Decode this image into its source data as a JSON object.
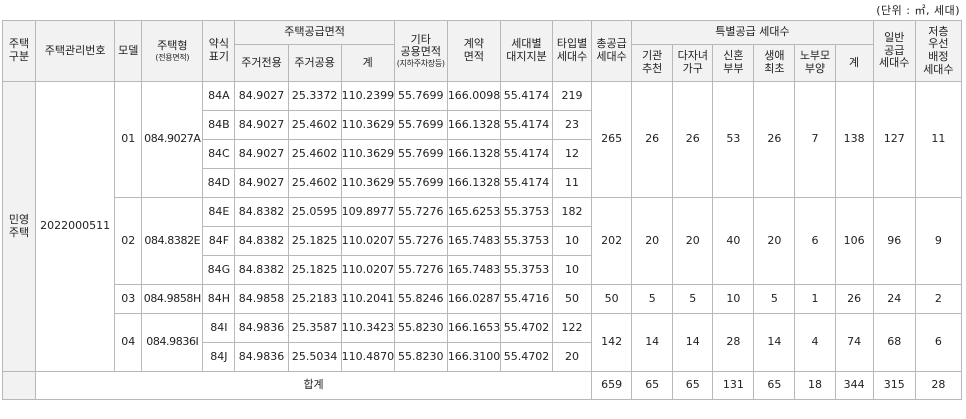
{
  "unit_note": "(단위 : ㎡, 세대)",
  "headers": {
    "housing_type": "주택\n구분",
    "mgmt_no": "주택관리번호",
    "model": "모델",
    "house_type": "주택형",
    "house_type_sub": "(전용면적)",
    "abbr": "약식\n표기",
    "supply_area": "주택공급면적",
    "excl": "주거전용",
    "common": "주거공용",
    "sum": "계",
    "other_common": "기타\n공용면적",
    "other_common_sub": "(지하주차장등)",
    "contract_area": "계약\n면적",
    "land_share": "세대별\n대지지분",
    "type_units": "타입별\n세대수",
    "total_supply": "총공급\n세대수",
    "special": "특별공급 세대수",
    "inst": "기관\n추천",
    "multi": "다자녀\n가구",
    "newlywed": "신혼\n부부",
    "first": "생애\n최초",
    "elderly": "노부모\n부양",
    "special_sum": "계",
    "general": "일반\n공급\n세대수",
    "low_storey": "저층\n우선\n배정\n세대수"
  },
  "housing_type": "민영\n주택",
  "mgmt_no": "2022000511",
  "models": [
    {
      "model": "01",
      "house_type": "084.9027A",
      "total_supply": "265",
      "inst": "26",
      "multi": "26",
      "newlywed": "53",
      "first": "26",
      "elderly": "7",
      "special_sum": "138",
      "general": "127",
      "low_storey": "11",
      "rows": [
        {
          "abbr": "84A",
          "excl": "84.9027",
          "common": "25.3372",
          "sum": "110.2399",
          "other": "55.7699",
          "contract": "166.0098",
          "land": "55.4174",
          "units": "219"
        },
        {
          "abbr": "84B",
          "excl": "84.9027",
          "common": "25.4602",
          "sum": "110.3629",
          "other": "55.7699",
          "contract": "166.1328",
          "land": "55.4174",
          "units": "23"
        },
        {
          "abbr": "84C",
          "excl": "84.9027",
          "common": "25.4602",
          "sum": "110.3629",
          "other": "55.7699",
          "contract": "166.1328",
          "land": "55.4174",
          "units": "12"
        },
        {
          "abbr": "84D",
          "excl": "84.9027",
          "common": "25.4602",
          "sum": "110.3629",
          "other": "55.7699",
          "contract": "166.1328",
          "land": "55.4174",
          "units": "11"
        }
      ]
    },
    {
      "model": "02",
      "house_type": "084.8382E",
      "total_supply": "202",
      "inst": "20",
      "multi": "20",
      "newlywed": "40",
      "first": "20",
      "elderly": "6",
      "special_sum": "106",
      "general": "96",
      "low_storey": "9",
      "rows": [
        {
          "abbr": "84E",
          "excl": "84.8382",
          "common": "25.0595",
          "sum": "109.8977",
          "other": "55.7276",
          "contract": "165.6253",
          "land": "55.3753",
          "units": "182"
        },
        {
          "abbr": "84F",
          "excl": "84.8382",
          "common": "25.1825",
          "sum": "110.0207",
          "other": "55.7276",
          "contract": "165.7483",
          "land": "55.3753",
          "units": "10"
        },
        {
          "abbr": "84G",
          "excl": "84.8382",
          "common": "25.1825",
          "sum": "110.0207",
          "other": "55.7276",
          "contract": "165.7483",
          "land": "55.3753",
          "units": "10"
        }
      ]
    },
    {
      "model": "03",
      "house_type": "084.9858H",
      "total_supply": "50",
      "inst": "5",
      "multi": "5",
      "newlywed": "10",
      "first": "5",
      "elderly": "1",
      "special_sum": "26",
      "general": "24",
      "low_storey": "2",
      "rows": [
        {
          "abbr": "84H",
          "excl": "84.9858",
          "common": "25.2183",
          "sum": "110.2041",
          "other": "55.8246",
          "contract": "166.0287",
          "land": "55.4716",
          "units": "50"
        }
      ]
    },
    {
      "model": "04",
      "house_type": "084.9836I",
      "total_supply": "142",
      "inst": "14",
      "multi": "14",
      "newlywed": "28",
      "first": "14",
      "elderly": "4",
      "special_sum": "74",
      "general": "68",
      "low_storey": "6",
      "rows": [
        {
          "abbr": "84I",
          "excl": "84.9836",
          "common": "25.3587",
          "sum": "110.3423",
          "other": "55.8230",
          "contract": "166.1653",
          "land": "55.4702",
          "units": "122"
        },
        {
          "abbr": "84J",
          "excl": "84.9836",
          "common": "25.5034",
          "sum": "110.4870",
          "other": "55.8230",
          "contract": "166.3100",
          "land": "55.4702",
          "units": "20"
        }
      ]
    }
  ],
  "totals": {
    "label": "합계",
    "total_supply": "659",
    "inst": "65",
    "multi": "65",
    "newlywed": "131",
    "first": "65",
    "elderly": "18",
    "special_sum": "344",
    "general": "315",
    "low_storey": "28"
  }
}
